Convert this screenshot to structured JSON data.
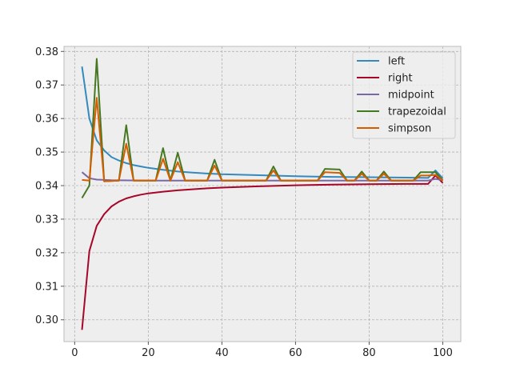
{
  "chart_data": {
    "type": "line",
    "title": "",
    "xlabel": "",
    "ylabel": "",
    "xlim": [
      -2.9,
      104.9
    ],
    "ylim": [
      0.2935,
      0.3815
    ],
    "xticks": [
      0,
      20,
      40,
      60,
      80,
      100
    ],
    "yticks": [
      0.3,
      0.31,
      0.32,
      0.33,
      0.34,
      0.35,
      0.36,
      0.37,
      0.38
    ],
    "grid": true,
    "legend_position": "top-right",
    "colors": {
      "background": "#eeeeee",
      "grid": "#b2b2b2",
      "left": "#348abd",
      "right": "#a60628",
      "midpoint": "#7a68a6",
      "trapezoidal": "#467821",
      "simpson": "#d55e00"
    },
    "series": [
      {
        "name": "left",
        "x": [
          2,
          4,
          6,
          8,
          10,
          12,
          14,
          16,
          18,
          20,
          24,
          28,
          32,
          36,
          40,
          50,
          60,
          70,
          80,
          90,
          96,
          98,
          100
        ],
        "y": [
          0.3755,
          0.36,
          0.3535,
          0.3505,
          0.3485,
          0.3475,
          0.3467,
          0.3461,
          0.3457,
          0.3453,
          0.3447,
          0.3442,
          0.3439,
          0.3436,
          0.3434,
          0.3431,
          0.3428,
          0.3426,
          0.3425,
          0.3424,
          0.3423,
          0.3445,
          0.3422
        ]
      },
      {
        "name": "right",
        "x": [
          2,
          4,
          6,
          8,
          10,
          12,
          14,
          16,
          18,
          20,
          24,
          28,
          32,
          36,
          40,
          50,
          60,
          70,
          80,
          90,
          96,
          98,
          100
        ],
        "y": [
          0.297,
          0.3205,
          0.328,
          0.3315,
          0.3338,
          0.3352,
          0.3362,
          0.3368,
          0.3373,
          0.3377,
          0.3382,
          0.3386,
          0.3389,
          0.3392,
          0.3394,
          0.3398,
          0.3401,
          0.3403,
          0.3404,
          0.3405,
          0.3405,
          0.343,
          0.3408
        ]
      },
      {
        "name": "midpoint",
        "x": [
          2,
          4,
          6,
          10,
          20,
          40,
          60,
          80,
          96,
          98,
          100
        ],
        "y": [
          0.344,
          0.3422,
          0.3418,
          0.3416,
          0.3415,
          0.3415,
          0.3415,
          0.3415,
          0.3415,
          0.342,
          0.3416
        ]
      },
      {
        "name": "trapezoidal",
        "x": [
          2,
          4,
          6,
          8,
          12,
          14,
          16,
          22,
          24,
          26,
          28,
          30,
          36,
          38,
          40,
          52,
          54,
          56,
          66,
          68,
          72,
          74,
          76,
          78,
          80,
          82,
          84,
          86,
          92,
          94,
          96,
          98,
          100
        ],
        "y": [
          0.3363,
          0.34,
          0.3778,
          0.3413,
          0.3415,
          0.358,
          0.3415,
          0.3415,
          0.3512,
          0.3415,
          0.3498,
          0.3415,
          0.3415,
          0.3477,
          0.3415,
          0.3415,
          0.3457,
          0.3415,
          0.3415,
          0.345,
          0.3448,
          0.3415,
          0.3415,
          0.3442,
          0.3415,
          0.3415,
          0.3442,
          0.3415,
          0.3415,
          0.344,
          0.344,
          0.344,
          0.3415
        ]
      },
      {
        "name": "simpson",
        "x": [
          2,
          4,
          6,
          8,
          12,
          14,
          16,
          22,
          24,
          26,
          28,
          30,
          36,
          38,
          40,
          52,
          54,
          56,
          66,
          68,
          72,
          74,
          76,
          78,
          80,
          82,
          84,
          86,
          92,
          94,
          96,
          98,
          100
        ],
        "y": [
          0.3417,
          0.3415,
          0.3662,
          0.3413,
          0.3415,
          0.3525,
          0.3415,
          0.3415,
          0.348,
          0.3415,
          0.347,
          0.3415,
          0.3415,
          0.346,
          0.3415,
          0.3415,
          0.3445,
          0.3415,
          0.3415,
          0.344,
          0.3438,
          0.3415,
          0.3415,
          0.3435,
          0.3415,
          0.3415,
          0.3435,
          0.3415,
          0.3415,
          0.343,
          0.343,
          0.3432,
          0.3415
        ]
      }
    ]
  }
}
